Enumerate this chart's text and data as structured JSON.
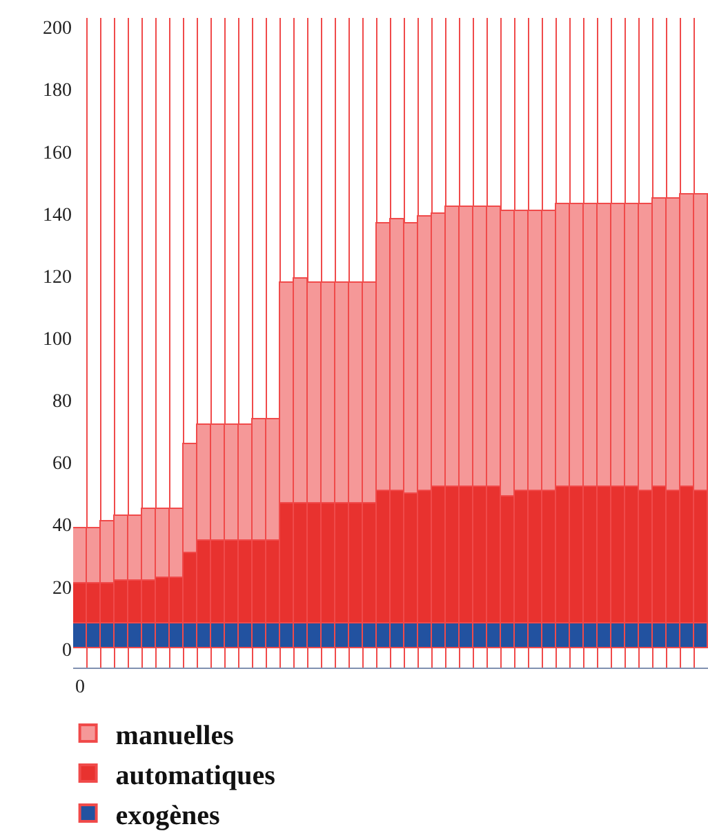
{
  "chart_data": {
    "type": "bar",
    "stacked": true,
    "categories": [
      "0",
      null,
      null,
      null,
      null,
      null,
      null,
      null,
      null,
      null,
      null,
      null,
      null,
      null,
      null,
      null,
      null,
      null,
      null,
      null,
      null,
      null,
      null,
      null,
      null,
      null,
      null,
      null,
      null,
      null,
      null,
      null,
      null,
      null,
      null,
      null,
      null,
      null,
      null,
      null,
      null,
      null,
      null,
      null,
      null,
      null
    ],
    "series": [
      {
        "name": "exogènes",
        "color": "#2252a0",
        "values": [
          8,
          8,
          8,
          8,
          8,
          8,
          8,
          8,
          8,
          8,
          8,
          8,
          8,
          8,
          8,
          8,
          8,
          8,
          8,
          8,
          8,
          8,
          8,
          8,
          8,
          8,
          8,
          8,
          8,
          8,
          8,
          8,
          8,
          8,
          8,
          8,
          8,
          8,
          8,
          8,
          8,
          8,
          8,
          8,
          8,
          8
        ]
      },
      {
        "name": "automatiques",
        "color": "#e8322f",
        "values": [
          13,
          13,
          13,
          14,
          14,
          14,
          15,
          15,
          23,
          27,
          27,
          27,
          27,
          27,
          27,
          39,
          39,
          39,
          39,
          39,
          39,
          39,
          43,
          43,
          42,
          43,
          44,
          44,
          44,
          44,
          44,
          41,
          43,
          43,
          43,
          44,
          44,
          44,
          44,
          44,
          44,
          43,
          44,
          43,
          44,
          43
        ]
      },
      {
        "name": "manuelles",
        "color": "#f59898",
        "values": [
          18,
          18,
          20,
          21,
          21,
          23,
          22,
          22,
          35,
          37,
          37,
          37,
          37,
          39,
          39,
          71,
          72,
          71,
          71,
          71,
          71,
          71,
          86,
          87,
          87,
          88,
          88,
          90,
          90,
          90,
          90,
          92,
          90,
          90,
          90,
          91,
          91,
          91,
          91,
          91,
          91,
          92,
          93,
          94,
          94,
          95
        ]
      }
    ],
    "ylim": [
      -6,
      203
    ],
    "yticks": [
      0,
      20,
      40,
      60,
      80,
      100,
      120,
      140,
      160,
      180,
      200
    ],
    "grid": "x",
    "legend": "bottom left"
  }
}
